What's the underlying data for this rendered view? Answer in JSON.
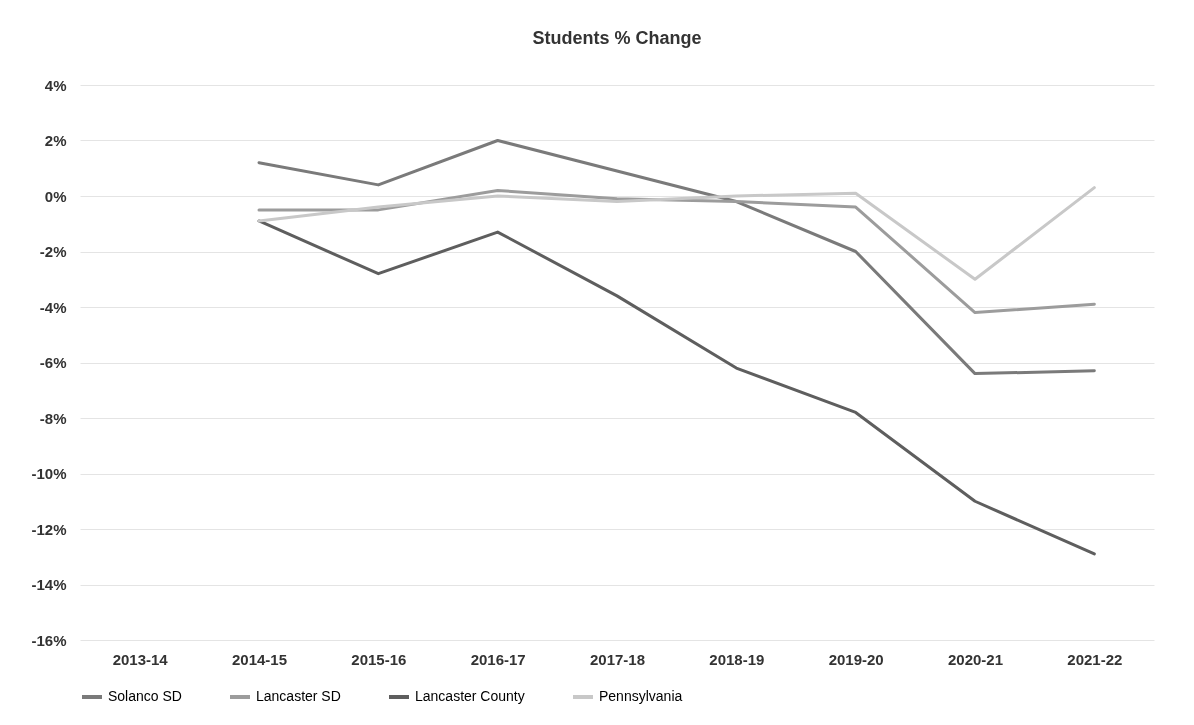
{
  "chart_data": {
    "type": "line",
    "title": "Students % Change",
    "categories": [
      "2013-14",
      "2014-15",
      "2015-16",
      "2016-17",
      "2017-18",
      "2018-19",
      "2019-20",
      "2020-21",
      "2021-22"
    ],
    "series": [
      {
        "name": "Solanco SD",
        "color": "#7a7a7a",
        "values": [
          null,
          1.2,
          0.4,
          2.0,
          0.9,
          -0.2,
          -2.0,
          -6.4,
          -6.3
        ]
      },
      {
        "name": "Lancaster SD",
        "color": "#9c9c9c",
        "values": [
          null,
          -0.5,
          -0.5,
          0.2,
          -0.1,
          -0.2,
          -0.4,
          -4.2,
          -3.9
        ]
      },
      {
        "name": "Lancaster County",
        "color": "#5e5e5e",
        "values": [
          null,
          -0.9,
          -2.8,
          -1.3,
          -3.6,
          -6.2,
          -7.8,
          -11.0,
          -12.9
        ]
      },
      {
        "name": "Pennsylvania",
        "color": "#c8c8c8",
        "values": [
          null,
          -0.9,
          -0.4,
          0.0,
          -0.2,
          0.0,
          0.1,
          -3.0,
          0.3
        ]
      }
    ],
    "ylim": [
      -16,
      4
    ],
    "yticks": [
      {
        "value": -16,
        "label": "-16%"
      },
      {
        "value": -14,
        "label": "-14%"
      },
      {
        "value": -12,
        "label": "-12%"
      },
      {
        "value": -10,
        "label": "-10%"
      },
      {
        "value": -8,
        "label": "-8%"
      },
      {
        "value": -6,
        "label": "-6%"
      },
      {
        "value": -4,
        "label": "-4%"
      },
      {
        "value": -2,
        "label": "-2%"
      },
      {
        "value": 0,
        "label": "0%"
      },
      {
        "value": 2,
        "label": "2%"
      },
      {
        "value": 4,
        "label": "4%"
      }
    ],
    "grid": "y",
    "legend": "bottom",
    "marker": "none",
    "line_style": "solid"
  }
}
